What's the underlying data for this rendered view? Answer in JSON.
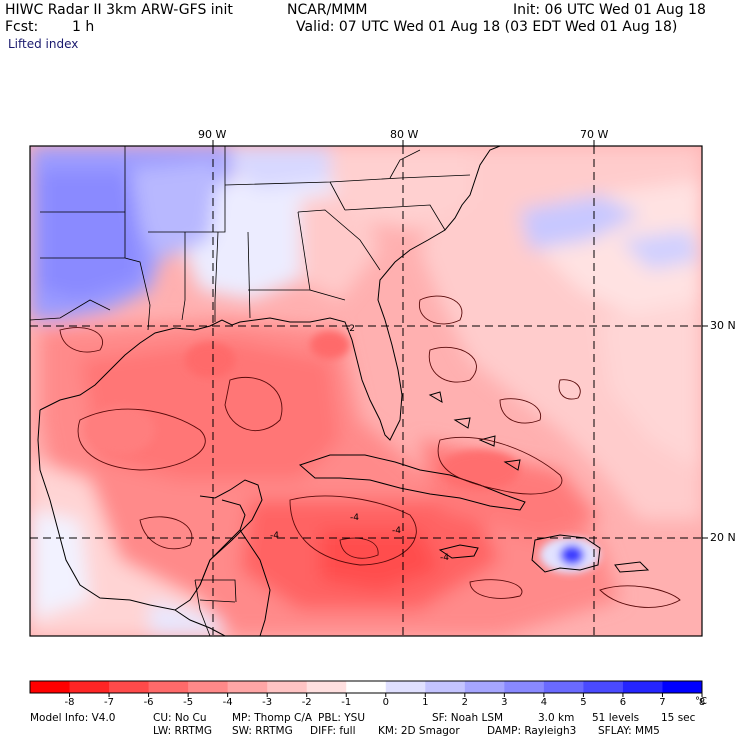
{
  "header": {
    "title_left": "HIWC Radar II 3km ARW-GFS init",
    "title_center": "NCAR/MMM",
    "init": "Init: 06 UTC Wed 01 Aug 18",
    "fcst_label": "Fcst:",
    "fcst_value": "1 h",
    "valid": "Valid: 07 UTC Wed 01 Aug 18 (03 EDT Wed 01 Aug 18)",
    "field": "Lifted index"
  },
  "map": {
    "lon_labels": [
      "90 W",
      "80 W",
      "70 W"
    ],
    "lat_labels": [
      "30 N",
      "20 N"
    ],
    "contour_labels": [
      "-2",
      "-4",
      "-4",
      "-4",
      "-4"
    ]
  },
  "colorbar": {
    "ticks": [
      "-8",
      "-7",
      "-6",
      "-5",
      "-4",
      "-3",
      "-2",
      "-1",
      "0",
      "1",
      "2",
      "3",
      "4",
      "5",
      "6",
      "7",
      "8"
    ],
    "unit": "°C",
    "colors": [
      "#ff0000",
      "#ff2525",
      "#ff4a4a",
      "#ff6a6a",
      "#ff8989",
      "#ffa6a6",
      "#ffc4c4",
      "#ffe0e0",
      "#ffffff",
      "#e0e0ff",
      "#c4c4ff",
      "#a6a6ff",
      "#8989ff",
      "#6a6aff",
      "#4a4aff",
      "#2525ff",
      "#0000ff"
    ]
  },
  "footer": {
    "line1": [
      "Model Info: V4.0",
      "CU: No Cu",
      "MP: Thomp C/A",
      "PBL: YSU",
      "SF: Noah LSM",
      "3.0 km",
      "51 levels",
      "15 sec"
    ],
    "line2": [
      "LW: RRTMG",
      "SW: RRTMG",
      "DIFF: full",
      "KM: 2D Smagor",
      "DAMP: Rayleigh3",
      "SFLAY: MM5"
    ]
  }
}
